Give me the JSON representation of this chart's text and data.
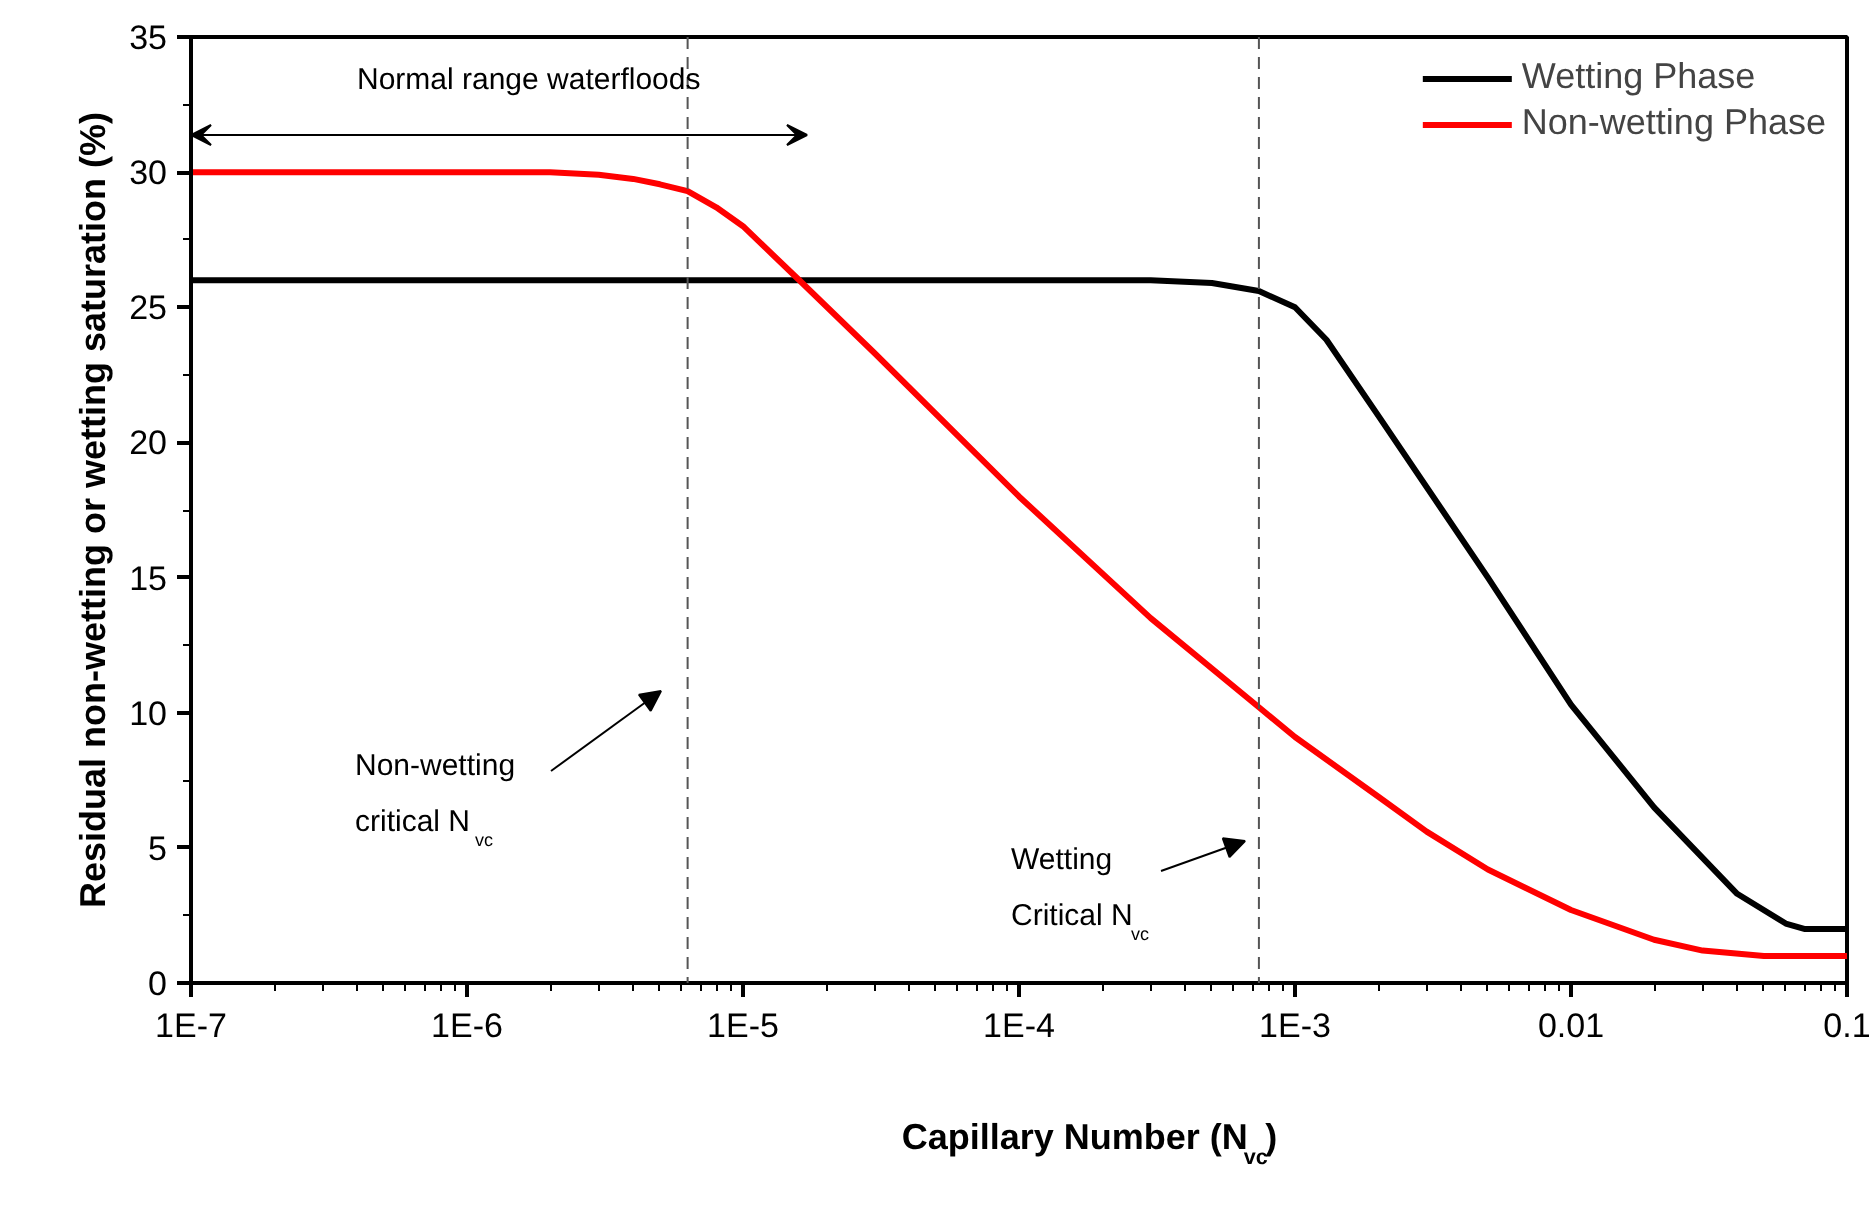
{
  "chart_data": {
    "type": "line",
    "xlabel": "Capillary Number (N$_{vc}$)",
    "ylabel": "Residual non-wetting or wetting saturation (%)",
    "log": "x",
    "xlim": [
      1e-07,
      0.1
    ],
    "xticks": [
      {
        "value": 1e-07,
        "label": "1E-7"
      },
      {
        "value": 1e-06,
        "label": "1E-6"
      },
      {
        "value": 1e-05,
        "label": "1E-5"
      },
      {
        "value": 0.0001,
        "label": "1E-4"
      },
      {
        "value": 0.001,
        "label": "1E-3"
      },
      0.01,
      0.1
    ],
    "ylim": [
      0,
      35
    ],
    "yticks": [
      0,
      5,
      10,
      15,
      20,
      25,
      30,
      35
    ],
    "grid": false,
    "legend": "top right",
    "line_style": "solid",
    "series": [
      {
        "name": "Wetting Phase",
        "color": "#000000",
        "x": [
          1e-07,
          1e-06,
          1e-05,
          0.0001,
          0.0003,
          0.0005,
          0.00074,
          0.001,
          0.0013,
          0.002,
          0.005,
          0.01,
          0.02,
          0.04,
          0.06,
          0.07,
          0.1
        ],
        "values": [
          26,
          26,
          26,
          26,
          26,
          25.9,
          25.6,
          25.0,
          23.8,
          21.0,
          15.0,
          10.3,
          6.5,
          3.3,
          2.2,
          2.0,
          2.0
        ]
      },
      {
        "name": "Non-wetting Phase",
        "color": "#ff0000",
        "x": [
          1e-07,
          1e-06,
          2e-06,
          3e-06,
          4e-06,
          5e-06,
          6.3e-06,
          8e-06,
          1e-05,
          1.6e-05,
          3e-05,
          0.0001,
          0.0003,
          0.00074,
          0.001,
          0.002,
          0.003,
          0.005,
          0.01,
          0.02,
          0.03,
          0.05,
          0.1
        ],
        "values": [
          30,
          30,
          30,
          29.9,
          29.75,
          29.55,
          29.3,
          28.7,
          28.0,
          26.0,
          23.3,
          18.0,
          13.5,
          10.2,
          9.1,
          6.9,
          5.6,
          4.2,
          2.7,
          1.6,
          1.2,
          1.0,
          1.0
        ]
      }
    ],
    "ref_lines": [
      {
        "axis": "x",
        "value": 6.3e-06,
        "color": "#555555",
        "line_style": "dashed"
      },
      {
        "axis": "x",
        "value": 0.00074,
        "color": "#555555",
        "line_style": "dashed"
      }
    ],
    "annotations": [
      "Normal range waterfloods",
      "Non-wetting\ncritical N$_{vc}$",
      "Wetting\nCritical N$_{vc}$"
    ]
  }
}
